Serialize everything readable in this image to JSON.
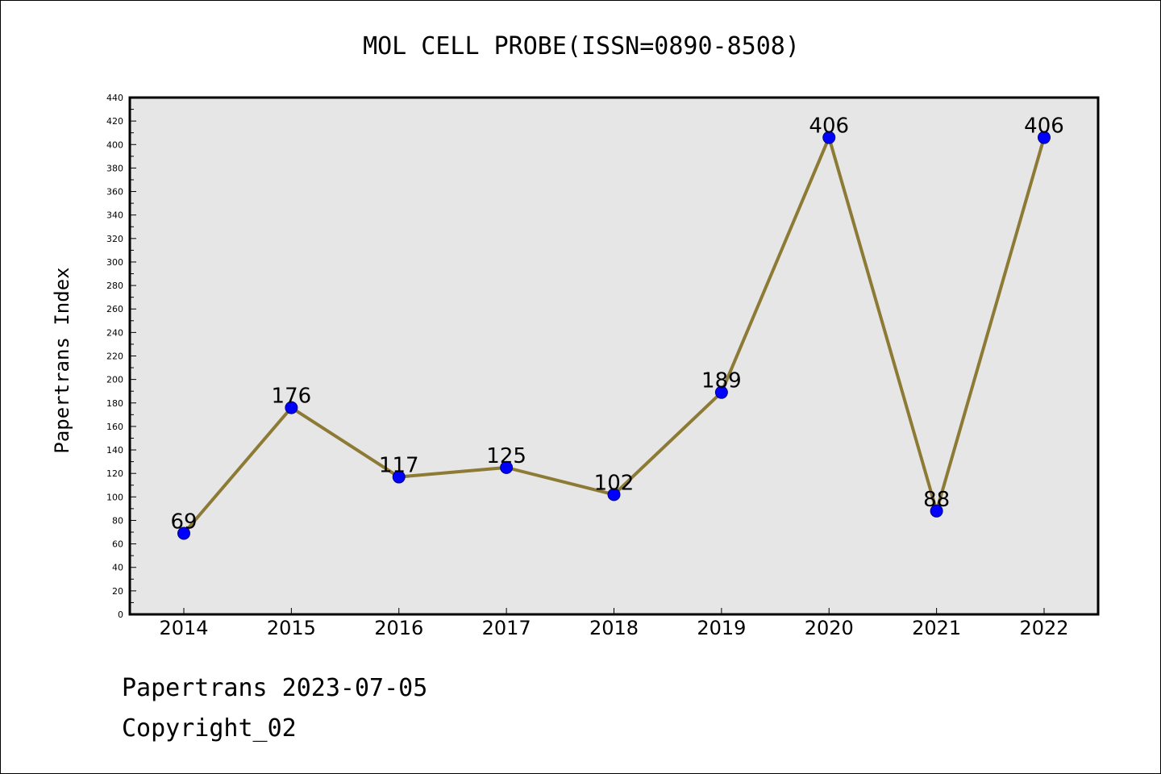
{
  "colors": {
    "plot_background": "#e6e6e6",
    "line": "#8c7a35",
    "marker_fill": "#0000ff",
    "marker_edge": "#000080",
    "frame": "#000000"
  },
  "chart_data": {
    "type": "line",
    "title": "MOL CELL PROBE(ISSN=0890-8508)",
    "xlabel": "",
    "ylabel": "Papertrans Index",
    "categories": [
      "2014",
      "2015",
      "2016",
      "2017",
      "2018",
      "2019",
      "2020",
      "2021",
      "2022"
    ],
    "series": [
      {
        "values": [
          69,
          176,
          117,
          125,
          102,
          189,
          406,
          88,
          406
        ]
      }
    ],
    "data_labels": [
      "69",
      "176",
      "117",
      "125",
      "102",
      "189",
      "406",
      "88",
      "406"
    ],
    "ylim": [
      0,
      440
    ],
    "yticks": [
      0,
      20,
      40,
      60,
      80,
      100,
      120,
      140,
      160,
      180,
      200,
      220,
      240,
      260,
      280,
      300,
      320,
      340,
      360,
      380,
      400,
      420,
      440
    ],
    "grid": false,
    "legend": "none"
  },
  "footer": {
    "date_line": "Papertrans 2023-07-05",
    "copyright_line": "Copyright_02"
  }
}
